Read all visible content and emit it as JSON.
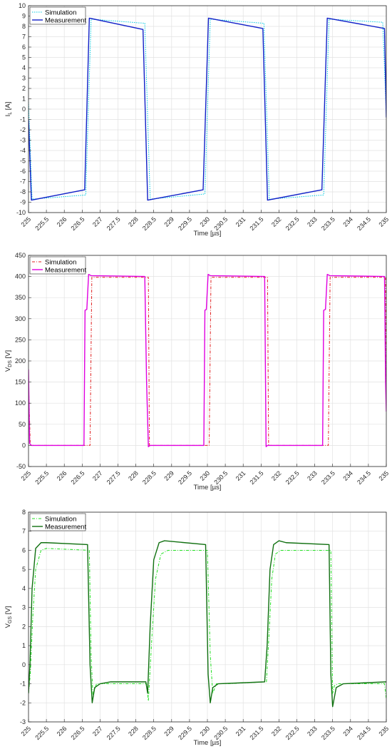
{
  "chart_data": [
    {
      "type": "line",
      "title": "",
      "xlabel": "Time [µs]",
      "ylabel": "I_L [A]",
      "ylabel_main": "I",
      "ylabel_sub": "L",
      "ylabel_unit": " [A]",
      "xlim": [
        225,
        235
      ],
      "ylim": [
        -10,
        10
      ],
      "xticks": [
        225,
        225.5,
        226,
        226.5,
        227,
        227.5,
        228,
        228.5,
        229,
        229.5,
        230,
        230.5,
        231,
        231.5,
        232,
        232.5,
        233,
        233.5,
        234,
        234.5,
        235
      ],
      "yticks": [
        -10,
        -9,
        -8,
        -7,
        -6,
        -5,
        -4,
        -3,
        -2,
        -1,
        0,
        1,
        2,
        3,
        4,
        5,
        6,
        7,
        8,
        9,
        10
      ],
      "grid": true,
      "legend": "top-left",
      "series": [
        {
          "name": "Simulation",
          "color": "#00c8e0",
          "dash": "dotted",
          "x": [
            225,
            225.1,
            226.6,
            226.75,
            228.25,
            228.4,
            229.93,
            230.08,
            231.58,
            231.73,
            233.25,
            233.4,
            234.9,
            235
          ],
          "y": [
            0.7,
            -8.7,
            -8.3,
            8.7,
            8.3,
            -8.7,
            -8.2,
            8.7,
            8.3,
            -8.7,
            -8.3,
            8.7,
            8.4,
            -0.5
          ]
        },
        {
          "name": "Measurement",
          "color": "#1020c8",
          "dash": "solid",
          "x": [
            225,
            225.08,
            226.57,
            226.7,
            228.2,
            228.33,
            229.88,
            230.03,
            231.55,
            231.68,
            233.2,
            233.35,
            234.95,
            235
          ],
          "y": [
            -1,
            -8.8,
            -7.8,
            8.8,
            7.7,
            -8.8,
            -7.8,
            8.8,
            7.8,
            -8.8,
            -7.8,
            8.8,
            7.8,
            -0.8
          ]
        }
      ]
    },
    {
      "type": "line",
      "title": "",
      "xlabel": "Time [µs]",
      "ylabel": "V_DS [V]",
      "ylabel_main": "V",
      "ylabel_sub": "DS",
      "ylabel_unit": " [V]",
      "xlim": [
        225,
        235
      ],
      "ylim": [
        -50,
        450
      ],
      "xticks": [
        225,
        225.5,
        226,
        226.5,
        227,
        227.5,
        228,
        228.5,
        229,
        229.5,
        230,
        230.5,
        231,
        231.5,
        232,
        232.5,
        233,
        233.5,
        234,
        234.5,
        235
      ],
      "yticks": [
        -50,
        0,
        50,
        100,
        150,
        200,
        250,
        300,
        350,
        400,
        450
      ],
      "grid": true,
      "legend": "top-left",
      "series": [
        {
          "name": "Simulation",
          "color": "#e02020",
          "dash": "dashdot",
          "x": [
            225,
            225.05,
            226.72,
            226.77,
            228.35,
            228.38,
            230.05,
            230.1,
            231.68,
            231.71,
            233.38,
            233.43,
            234.98,
            235
          ],
          "y": [
            150,
            0,
            0,
            398,
            398,
            0,
            0,
            398,
            398,
            0,
            0,
            398,
            398,
            150
          ]
        },
        {
          "name": "Measurement",
          "color": "#e000e0",
          "dash": "solid",
          "x": [
            225,
            225.03,
            225.08,
            226.55,
            226.58,
            226.63,
            226.68,
            226.75,
            228.25,
            228.3,
            228.35,
            228.4,
            229.9,
            229.93,
            229.97,
            230.02,
            230.08,
            231.6,
            231.64,
            231.68,
            231.73,
            233.22,
            233.25,
            233.3,
            233.35,
            233.42,
            234.95,
            234.98,
            235
          ],
          "y": [
            180,
            5,
            0,
            0,
            320,
            322,
            405,
            402,
            400,
            150,
            -3,
            0,
            0,
            320,
            322,
            405,
            402,
            400,
            -3,
            0,
            0,
            0,
            320,
            322,
            405,
            402,
            400,
            150,
            80
          ]
        }
      ]
    },
    {
      "type": "line",
      "title": "",
      "xlabel": "Time [µs]",
      "ylabel": "V_GS [V]",
      "ylabel_main": "V",
      "ylabel_sub": "GS",
      "ylabel_unit": " [V]",
      "xlim": [
        225,
        235
      ],
      "ylim": [
        -3,
        8
      ],
      "xticks": [
        225,
        225.5,
        226,
        226.5,
        227,
        227.5,
        228,
        228.5,
        229,
        229.5,
        230,
        230.5,
        231,
        231.5,
        232,
        232.5,
        233,
        233.5,
        234,
        234.5,
        235
      ],
      "yticks": [
        -3,
        -2,
        -1,
        0,
        1,
        2,
        3,
        4,
        5,
        6,
        7,
        8
      ],
      "grid": true,
      "legend": "top-left",
      "series": [
        {
          "name": "Simulation",
          "color": "#20e020",
          "dash": "dashdot",
          "x": [
            225,
            225.05,
            225.12,
            225.2,
            225.35,
            225.5,
            226.7,
            226.75,
            226.8,
            226.9,
            227.2,
            228.3,
            228.35,
            228.45,
            228.55,
            228.7,
            228.9,
            230.0,
            230.08,
            230.15,
            230.25,
            230.5,
            231.65,
            231.72,
            231.8,
            231.9,
            232.05,
            232.3,
            233.45,
            233.5,
            233.55,
            233.65,
            234,
            234.95,
            235
          ],
          "y": [
            -1.5,
            -0.5,
            2.5,
            5.0,
            6.0,
            6.1,
            6.0,
            0.5,
            -1.6,
            -1.0,
            -1.0,
            -1.0,
            -1.9,
            1.5,
            4.5,
            5.8,
            6.0,
            6.0,
            0.5,
            -1.5,
            -1.0,
            -1.0,
            -0.9,
            1.5,
            4.5,
            5.8,
            6.0,
            6.0,
            6.0,
            -1.5,
            -1.1,
            -1.0,
            -1.0,
            -1.0,
            -1.8
          ]
        },
        {
          "name": "Measurement",
          "color": "#107010",
          "dash": "solid",
          "x": [
            225,
            225.04,
            225.1,
            225.2,
            225.35,
            225.5,
            226.65,
            226.72,
            226.78,
            226.85,
            227.0,
            227.3,
            228.28,
            228.33,
            228.4,
            228.5,
            228.65,
            228.8,
            229.95,
            230.02,
            230.08,
            230.15,
            230.3,
            231.6,
            231.67,
            231.75,
            231.85,
            232.0,
            232.2,
            233.4,
            233.45,
            233.5,
            233.6,
            233.8,
            235
          ],
          "y": [
            -1.5,
            0.0,
            4.0,
            6.1,
            6.4,
            6.4,
            6.3,
            0.0,
            -2.0,
            -1.2,
            -1.0,
            -0.9,
            -0.9,
            -1.5,
            2.0,
            5.5,
            6.4,
            6.5,
            6.3,
            -0.5,
            -2.0,
            -1.2,
            -1.0,
            -0.9,
            1.0,
            5.0,
            6.3,
            6.5,
            6.4,
            6.3,
            -0.5,
            -2.2,
            -1.2,
            -1.0,
            -0.9
          ]
        }
      ]
    }
  ]
}
